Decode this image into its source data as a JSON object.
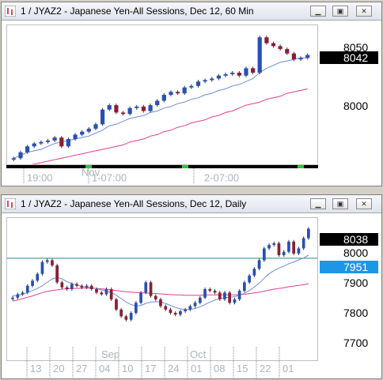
{
  "colors": {
    "up": "#2850b4",
    "down": "#8c1e32",
    "ma_slow": "#e0408c",
    "ma_fast": "#6e8cdc",
    "price_tag": "#000000",
    "level_tag": "#1e96e6",
    "level_line": "#1e8c8c"
  },
  "window1": {
    "title": "1 / JYAZ2 - Japanese Yen-All Sessions, Dec 12, 60 Min",
    "price_ticks": [
      "8050",
      "8000"
    ],
    "last_price": "8042",
    "time_labels": [
      "19:00",
      "1-07:00",
      "2-07:00"
    ],
    "month_label": "Nov",
    "icons": [
      "chart-icon",
      "minimize-icon",
      "restore-icon",
      "close-icon"
    ]
  },
  "window2": {
    "title": "1 / JYAZ2 - Japanese Yen-All Sessions, Dec 12, Daily",
    "price_ticks": [
      "8000",
      "7900",
      "7800",
      "7700"
    ],
    "last_price": "8038",
    "level_price": "7951",
    "date_labels": [
      "13",
      "20",
      "27",
      "04",
      "10",
      "17",
      "24",
      "01",
      "08",
      "15",
      "22",
      "01"
    ],
    "month_labels": [
      "Sep",
      "Oct"
    ]
  },
  "chart_data": [
    {
      "type": "candlestick",
      "timeframe": "60 Min",
      "ylim": [
        7970,
        8060
      ],
      "grid": false,
      "close": [
        7972,
        7976,
        7980,
        7982,
        7983,
        7984,
        7986,
        7980,
        7985,
        7988,
        7990,
        7992,
        7995,
        8005,
        8008,
        8003,
        8002,
        8006,
        8007,
        8004,
        8008,
        8011,
        8015,
        8017,
        8016,
        8020,
        8021,
        8024,
        8025,
        8026,
        8028,
        8029,
        8030,
        8028,
        8033,
        8030,
        8054,
        8050,
        8048,
        8046,
        8043,
        8039,
        8040,
        8042
      ],
      "series": [
        {
          "name": "",
          "kind": "moving-average",
          "values": [
            7966,
            7966,
            7967,
            7968,
            7969,
            7970,
            7971,
            7972,
            7973,
            7974,
            7975,
            7976,
            7977,
            7978,
            7979,
            7980,
            7981,
            7983,
            7984,
            7985,
            7987,
            7988,
            7990,
            7991,
            7993,
            7994,
            7996,
            7997,
            7998,
            8000,
            8001,
            8003,
            8004,
            8006,
            8008,
            8009,
            8010,
            8012,
            8013,
            8014,
            8016,
            8017,
            8018,
            8019
          ]
        },
        {
          "name": "",
          "kind": "moving-average",
          "values": [
            7972,
            7974,
            7976,
            7977,
            7978,
            7980,
            7982,
            7983,
            7984,
            7985,
            7986,
            7987,
            7989,
            7991,
            7994,
            7995,
            7997,
            7999,
            8000,
            8001,
            8003,
            8004,
            8006,
            8007,
            8009,
            8010,
            8012,
            8013,
            8015,
            8016,
            8018,
            8019,
            8021,
            8022,
            8024,
            8026,
            8030,
            8033,
            8035,
            8037,
            8038,
            8039,
            8040,
            8040
          ]
        }
      ]
    },
    {
      "type": "candlestick",
      "timeframe": "Daily",
      "ylim": [
        7660,
        8060
      ],
      "grid": false,
      "horizontal_line": 7951,
      "close": [
        7835,
        7845,
        7850,
        7870,
        7885,
        7905,
        7940,
        7945,
        7930,
        7880,
        7865,
        7860,
        7875,
        7870,
        7865,
        7870,
        7860,
        7850,
        7845,
        7860,
        7830,
        7800,
        7780,
        7770,
        7790,
        7820,
        7850,
        7880,
        7840,
        7830,
        7810,
        7800,
        7790,
        7785,
        7795,
        7800,
        7810,
        7820,
        7835,
        7860,
        7855,
        7850,
        7830,
        7850,
        7820,
        7830,
        7855,
        7880,
        7900,
        7920,
        7945,
        7980,
        7990,
        7995,
        7960,
        7970,
        8000,
        7965,
        7980,
        8010,
        8038
      ],
      "series": [
        {
          "name": "",
          "kind": "moving-average",
          "values": [
            7825,
            7828,
            7832,
            7836,
            7840,
            7845,
            7850,
            7853,
            7856,
            7858,
            7860,
            7861,
            7862,
            7862,
            7863,
            7863,
            7863,
            7862,
            7861,
            7860,
            7858,
            7856,
            7854,
            7852,
            7851,
            7850,
            7849,
            7849,
            7848,
            7847,
            7846,
            7845,
            7844,
            7843,
            7843,
            7842,
            7842,
            7842,
            7842,
            7843,
            7843,
            7843,
            7843,
            7843,
            7843,
            7843,
            7844,
            7845,
            7847,
            7849,
            7851,
            7854,
            7857,
            7860,
            7862,
            7864,
            7867,
            7869,
            7871,
            7873,
            7876
          ]
        },
        {
          "name": "",
          "kind": "moving-average",
          "values": [
            7840,
            7842,
            7845,
            7850,
            7856,
            7862,
            7870,
            7880,
            7890,
            7895,
            7890,
            7882,
            7876,
            7872,
            7868,
            7866,
            7864,
            7862,
            7858,
            7855,
            7850,
            7842,
            7832,
            7822,
            7815,
            7810,
            7812,
            7818,
            7822,
            7823,
            7822,
            7818,
            7812,
            7806,
            7802,
            7800,
            7800,
            7803,
            7808,
            7815,
            7822,
            7828,
            7832,
            7835,
            7836,
            7838,
            7842,
            7848,
            7856,
            7866,
            7878,
            7892,
            7905,
            7915,
            7922,
            7928,
            7935,
            7940,
            7946,
            7952,
            7960
          ]
        }
      ]
    }
  ]
}
